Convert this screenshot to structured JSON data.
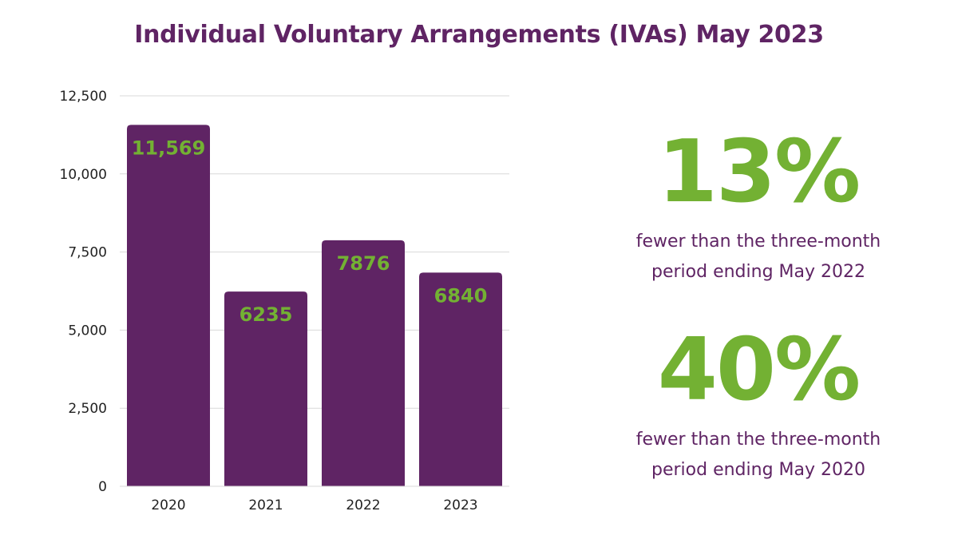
{
  "title": "Individual Voluntary Arrangements (IVAs) May 2023",
  "colors": {
    "bar": "#5f2464",
    "data_label": "#73b133",
    "title": "#5f2464",
    "stat_value": "#73b133",
    "gridline": "#d9d9d9",
    "axis_text": "#222222"
  },
  "stats": [
    {
      "value": "13%",
      "caption": "fewer than the three-month period ending May 2022"
    },
    {
      "value": "40%",
      "caption": "fewer than the three-month period ending May 2020"
    }
  ],
  "chart_data": {
    "type": "bar",
    "categories": [
      "2020",
      "2021",
      "2022",
      "2023"
    ],
    "values": [
      11569,
      6235,
      7876,
      6840
    ],
    "data_labels": [
      "11,569",
      "6235",
      "7876",
      "6840"
    ],
    "yticks": [
      0,
      2500,
      5000,
      7500,
      10000,
      12500
    ],
    "ytick_labels": [
      "0",
      "2,500",
      "5,000",
      "7,500",
      "10,000",
      "12,500"
    ],
    "ylim": [
      0,
      12500
    ],
    "grid": true,
    "legend": "none"
  }
}
